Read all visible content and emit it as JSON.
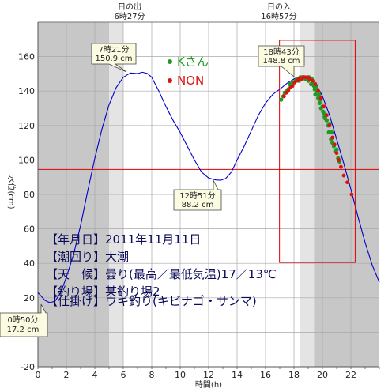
{
  "chart_data": {
    "type": "line",
    "xlabel": "時間(h)",
    "ylabel": "水位(cm)",
    "xlim": [
      0,
      24
    ],
    "ylim": [
      -20,
      180
    ],
    "xticks": [
      0,
      2,
      4,
      6,
      8,
      10,
      12,
      14,
      16,
      18,
      20,
      22
    ],
    "yticks": [
      -20,
      0,
      20,
      40,
      60,
      80,
      100,
      120,
      140,
      160
    ],
    "sunrise": {
      "label1": "日の出",
      "label2": "6時27分",
      "time": 6.45
    },
    "sunset": {
      "label1": "日の入",
      "label2": "16時57分",
      "time": 16.95
    },
    "night_bands": [
      [
        0,
        5.0
      ],
      [
        19.4,
        24
      ]
    ],
    "twilight_bands": [
      [
        5.0,
        6.0
      ],
      [
        18.4,
        19.4
      ]
    ],
    "reference_line": {
      "y": 94.5,
      "color": "#dd0000"
    },
    "tide_series": {
      "name": "tide",
      "color": "#0000cc",
      "x": [
        0,
        0.5,
        0.83,
        1.2,
        1.6,
        2,
        2.5,
        3,
        3.5,
        4,
        4.5,
        5,
        5.5,
        6,
        6.5,
        7,
        7.35,
        7.7,
        8,
        8.5,
        9,
        9.5,
        10,
        10.5,
        11,
        11.5,
        12,
        12.5,
        12.85,
        13.2,
        13.6,
        14,
        14.5,
        15,
        15.5,
        16,
        16.5,
        17,
        17.5,
        18,
        18.4,
        18.72,
        19,
        19.5,
        20,
        20.5,
        21,
        21.5,
        22,
        22.5,
        23,
        23.5,
        24
      ],
      "y": [
        23,
        18.5,
        17.2,
        18,
        23,
        32,
        45,
        62,
        82,
        101,
        118,
        132,
        142,
        148,
        150.5,
        150.2,
        150.9,
        150.2,
        148,
        140,
        131,
        123,
        116,
        108,
        100,
        93,
        89.5,
        88.4,
        88.2,
        89.2,
        93,
        100,
        108,
        117,
        126,
        133,
        138,
        141,
        144.5,
        147,
        148.5,
        148.8,
        148.3,
        145,
        137,
        126,
        112,
        98,
        83,
        67,
        52,
        39,
        29
      ]
    },
    "k_series": {
      "name": "Kさん",
      "color": "#229922",
      "x": [
        17.1,
        17.25,
        17.35,
        17.5,
        17.6,
        17.7,
        17.8,
        17.9,
        18.0,
        18.1,
        18.2,
        18.3,
        18.35,
        18.45,
        18.5,
        18.6,
        18.7,
        18.8,
        18.9,
        19.0,
        19.05,
        19.1,
        19.2,
        19.25,
        19.3,
        19.4,
        19.45,
        19.5,
        19.55,
        19.6,
        19.7,
        19.75,
        19.8,
        19.85,
        19.9,
        20.0,
        20.05,
        20.1,
        20.15,
        20.2,
        20.25,
        20.3,
        20.4,
        20.45,
        20.5,
        20.6,
        20.65,
        20.7,
        20.8,
        20.9,
        21.0,
        21.1,
        21.2
      ],
      "y": [
        135,
        137,
        139,
        140,
        141,
        144,
        143,
        145,
        145,
        146,
        147,
        147,
        146,
        148,
        147,
        148,
        148,
        147,
        147,
        146,
        148,
        147,
        144,
        147,
        145,
        143,
        141,
        138,
        142,
        140,
        136,
        138,
        133,
        135,
        130,
        131,
        128,
        127,
        125,
        124,
        126,
        123,
        120,
        116,
        121,
        112,
        116,
        110,
        108,
        105,
        106,
        101,
        99
      ]
    },
    "non_series": {
      "name": "NON",
      "color": "#dd1111",
      "x": [
        17.3,
        17.45,
        17.6,
        17.75,
        17.9,
        18.05,
        18.2,
        18.35,
        18.5,
        18.65,
        18.8,
        18.95,
        19.1,
        19.3,
        19.5,
        19.7,
        19.9,
        20.1,
        20.3,
        20.5,
        20.7,
        20.85,
        21.0,
        21.15,
        21.3,
        21.5,
        21.75,
        22.05
      ],
      "y": [
        137,
        139,
        140,
        142,
        143,
        145,
        146,
        147,
        147,
        148,
        148,
        148,
        147,
        146,
        144,
        140,
        136,
        131,
        126,
        120,
        113,
        109,
        104,
        100,
        96,
        91,
        87,
        80
      ]
    },
    "annotations": [
      {
        "id": "high1",
        "line1": "7時21分",
        "line2": "150.9 cm",
        "x": 7.35,
        "y": 150.9
      },
      {
        "id": "low2",
        "line1": "12時51分",
        "line2": "88.2 cm",
        "x": 12.85,
        "y": 88.2
      },
      {
        "id": "low1",
        "line1": "0時50分",
        "line2": "17.2 cm",
        "x": 0.83,
        "y": 17.2
      },
      {
        "id": "high2",
        "line1": "18時43分",
        "line2": "148.8 cm",
        "x": 18.72,
        "y": 148.8
      }
    ],
    "highlight_box": {
      "x": [
        16.98,
        22.3
      ],
      "y": [
        40.5,
        169.5
      ],
      "color": "#dd0000"
    }
  },
  "legend": [
    {
      "label": "Kさん",
      "color": "#229922"
    },
    {
      "label": "NON",
      "color": "#dd1111"
    }
  ],
  "info": [
    "【年月日】2011年11月11日",
    "【潮回り】大潮",
    "【天　候】曇り(最高／最低気温)17／13℃",
    "【釣り場】某釣り場2",
    "【仕掛け】ウキ釣り(キビナゴ・サンマ)"
  ]
}
